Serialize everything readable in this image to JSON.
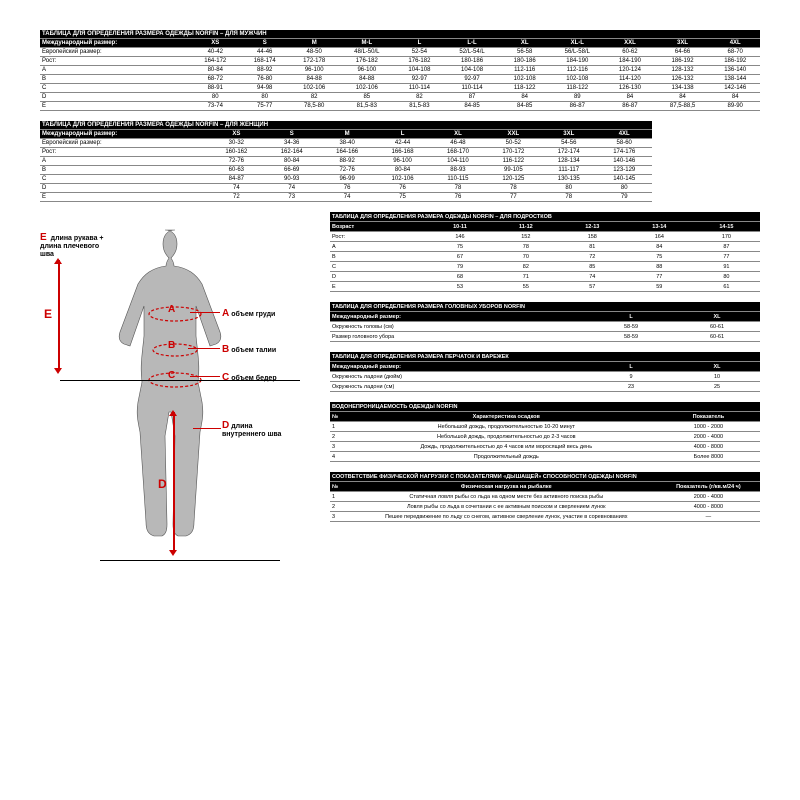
{
  "men": {
    "title": "ТАБЛИЦА ДЛЯ ОПРЕДЕЛЕНИЯ РАЗМЕРА ОДЕЖДЫ NORFIN – ДЛЯ МУЖЧИН",
    "headers": [
      "Международный размер:",
      "XS",
      "S",
      "M",
      "M-L",
      "L",
      "L-L",
      "XL",
      "XL-L",
      "XXL",
      "3XL",
      "4XL"
    ],
    "rows": [
      [
        "Европейский размер:",
        "40-42",
        "44-46",
        "48-50",
        "48/L-50/L",
        "52-54",
        "52/L-54/L",
        "56-58",
        "56/L-58/L",
        "60-62",
        "64-66",
        "68-70"
      ],
      [
        "Рост:",
        "164-172",
        "168-174",
        "172-178",
        "176-182",
        "176-182",
        "180-186",
        "180-186",
        "184-190",
        "184-190",
        "186-192",
        "186-192"
      ],
      [
        "A",
        "80-84",
        "88-92",
        "96-100",
        "96-100",
        "104-108",
        "104-108",
        "112-116",
        "112-116",
        "120-124",
        "128-132",
        "136-140"
      ],
      [
        "B",
        "68-72",
        "76-80",
        "84-88",
        "84-88",
        "92-97",
        "92-97",
        "102-108",
        "102-108",
        "114-120",
        "126-132",
        "138-144"
      ],
      [
        "C",
        "88-91",
        "94-98",
        "102-106",
        "102-106",
        "110-114",
        "110-114",
        "118-122",
        "118-122",
        "126-130",
        "134-138",
        "142-146"
      ],
      [
        "D",
        "80",
        "80",
        "82",
        "85",
        "82",
        "87",
        "84",
        "89",
        "84",
        "84",
        "84"
      ],
      [
        "E",
        "73-74",
        "75-77",
        "78,5-80",
        "81,5-83",
        "81,5-83",
        "84-85",
        "84-85",
        "86-87",
        "86-87",
        "87,5-88,5",
        "89-90"
      ]
    ]
  },
  "women": {
    "title": "ТАБЛИЦА ДЛЯ ОПРЕДЕЛЕНИЯ РАЗМЕРА ОДЕЖДЫ NORFIN – ДЛЯ ЖЕНЩИН",
    "headers": [
      "Международный размер:",
      "XS",
      "S",
      "M",
      "L",
      "XL",
      "XXL",
      "3XL",
      "4XL"
    ],
    "rows": [
      [
        "Европейский размер:",
        "30-32",
        "34-36",
        "38-40",
        "42-44",
        "46-48",
        "50-52",
        "54-56",
        "58-60"
      ],
      [
        "Рост:",
        "160-162",
        "162-164",
        "164-166",
        "166-168",
        "168-170",
        "170-172",
        "172-174",
        "174-176"
      ],
      [
        "A",
        "72-76",
        "80-84",
        "88-92",
        "96-100",
        "104-110",
        "116-122",
        "128-134",
        "140-146"
      ],
      [
        "B",
        "60-63",
        "66-69",
        "72-76",
        "80-84",
        "88-93",
        "99-105",
        "111-117",
        "123-129"
      ],
      [
        "C",
        "84-87",
        "90-93",
        "96-99",
        "102-106",
        "110-115",
        "120-125",
        "130-135",
        "140-145"
      ],
      [
        "D",
        "74",
        "74",
        "76",
        "76",
        "78",
        "78",
        "80",
        "80"
      ],
      [
        "E",
        "72",
        "73",
        "74",
        "75",
        "76",
        "77",
        "78",
        "79"
      ]
    ]
  },
  "teens": {
    "title": "ТАБЛИЦА ДЛЯ ОПРЕДЕЛЕНИЯ РАЗМЕРА ОДЕЖДЫ NORFIN – ДЛЯ ПОДРОСТКОВ",
    "headers": [
      "Возраст",
      "10-11",
      "11-12",
      "12-13",
      "13-14",
      "14-15"
    ],
    "rows": [
      [
        "Рост:",
        "146",
        "152",
        "158",
        "164",
        "170"
      ],
      [
        "A",
        "75",
        "78",
        "81",
        "84",
        "87"
      ],
      [
        "B",
        "67",
        "70",
        "72",
        "75",
        "77"
      ],
      [
        "C",
        "79",
        "82",
        "85",
        "88",
        "91"
      ],
      [
        "D",
        "68",
        "71",
        "74",
        "77",
        "80"
      ],
      [
        "E",
        "53",
        "55",
        "57",
        "59",
        "61"
      ]
    ]
  },
  "hats": {
    "title": "ТАБЛИЦА ДЛЯ ОПРЕДЕЛЕНИЯ РАЗМЕРА ГОЛОВНЫХ УБОРОВ NORFIN",
    "headers": [
      "Международный размер:",
      "L",
      "XL"
    ],
    "rows": [
      [
        "Окружность головы (см)",
        "58-59",
        "60-61"
      ],
      [
        "Размер головного убора",
        "58-59",
        "60-61"
      ]
    ]
  },
  "gloves": {
    "title": "ТАБЛИЦА ДЛЯ ОПРЕДЕЛЕНИЯ РАЗМЕРА ПЕРЧАТОК И ВАРЕЖЕК",
    "headers": [
      "Международный размер:",
      "L",
      "XL"
    ],
    "rows": [
      [
        "Окружность ладони (дюйм)",
        "9",
        "10"
      ],
      [
        "Окружность ладони (см)",
        "23",
        "25"
      ]
    ]
  },
  "waterproof": {
    "title": "ВОДОНЕПРОНИЦАЕМОСТЬ ОДЕЖДЫ NORFIN",
    "headers": [
      "№",
      "Характеристика осадков",
      "Показатель"
    ],
    "rows": [
      [
        "1",
        "Небольшой дождь, продолжительностью 10-20 минут",
        "1000 - 2000"
      ],
      [
        "2",
        "Небольшой дождь, продолжительностью до 2-3 часов",
        "2000 - 4000"
      ],
      [
        "3",
        "Дождь, продолжительностью до 4 часов или моросящий весь день",
        "4000 - 8000"
      ],
      [
        "4",
        "Продолжительный дождь",
        "Более 8000"
      ]
    ]
  },
  "breath": {
    "title": "СООТВЕТСТВИЕ ФИЗИЧЕСКОЙ НАГРУЗКИ С ПОКАЗАТЕЛЯМИ «ДЫШАЩЕЙ» СПОСОБНОСТИ ОДЕЖДЫ NORFIN",
    "headers": [
      "№",
      "Физическая нагрузка на рыбалке",
      "Показатель (г/кв.м/24 ч)"
    ],
    "rows": [
      [
        "1",
        "Статичная ловля рыбы со льда на одном месте без активного поиска рыбы",
        "2000 - 4000"
      ],
      [
        "2",
        "Ловля рыбы со льда в сочетании с ее активным поиском и сверлением лунок",
        "4000 - 8000"
      ],
      [
        "3",
        "Пешее передвижение по льду со снегом, активное сверление лунок, участие в соревнованиях",
        "—"
      ]
    ]
  },
  "labels": {
    "E": "длина рукава + длина плечевого шва",
    "A": "объем груди",
    "B": "объем талии",
    "C": "объем бедер",
    "D": "длина внутреннего шва"
  }
}
